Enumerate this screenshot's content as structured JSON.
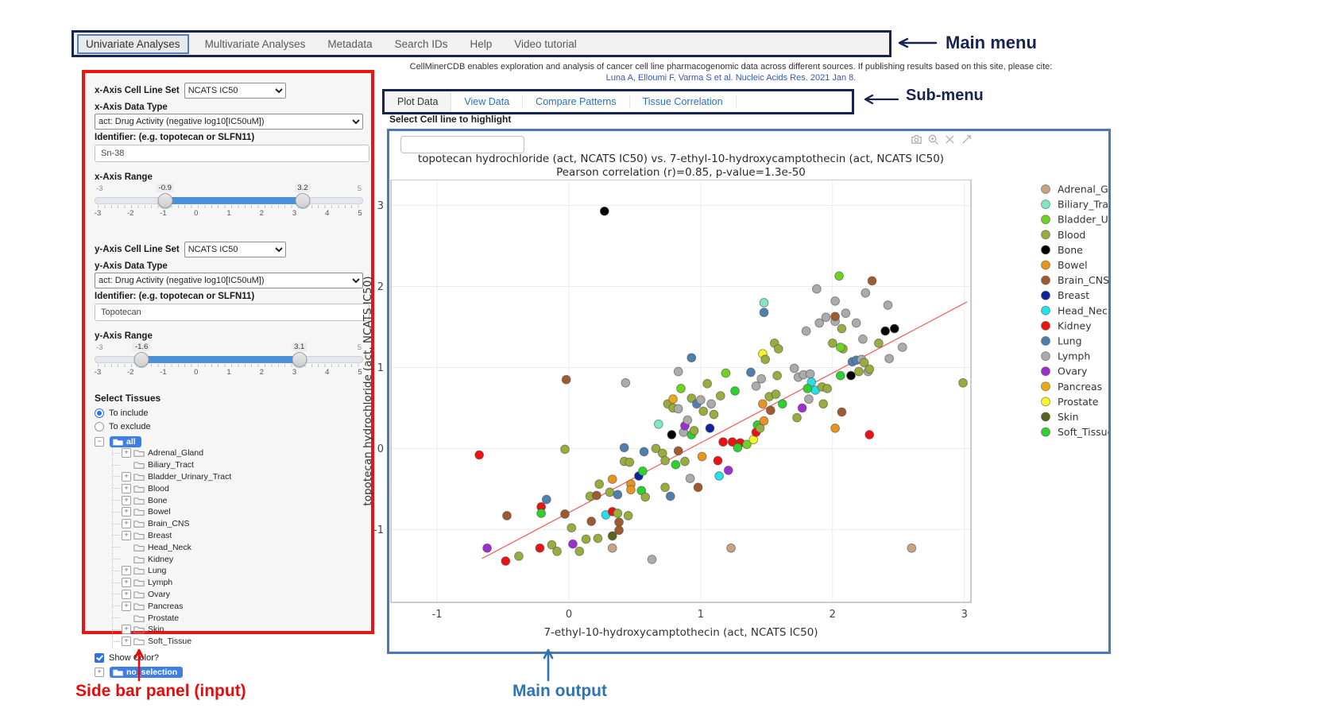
{
  "annotations": {
    "main_menu": "Main menu",
    "sub_menu": "Sub-menu",
    "sidebar": "Side bar panel (input)",
    "main_output": "Main output"
  },
  "main_menu": {
    "items": [
      {
        "label": "Univariate Analyses",
        "active": true
      },
      {
        "label": "Multivariate Analyses",
        "active": false
      },
      {
        "label": "Metadata",
        "active": false
      },
      {
        "label": "Search IDs",
        "active": false
      },
      {
        "label": "Help",
        "active": false
      },
      {
        "label": "Video tutorial",
        "active": false
      }
    ]
  },
  "citation": {
    "line1": "CellMinerCDB enables exploration and analysis of cancer cell line pharmacogenomic data across different sources. If publishing results based on this site, please cite:",
    "link": "Luna A, Elloumi F, Varma S et al. Nucleic Acids Res. 2021 Jan 8."
  },
  "sub_menu": {
    "active": "Plot Data",
    "items": [
      "Plot Data",
      "View Data",
      "Compare Patterns",
      "Tissue Correlation"
    ]
  },
  "highlight": {
    "label": "Select Cell line to highlight",
    "input_value": ""
  },
  "sidebar": {
    "x_axis": {
      "cell_line_set_label": "x-Axis Cell Line Set",
      "cell_line_set_value": "NCATS IC50",
      "data_type_label": "x-Axis Data Type",
      "data_type_value": "act: Drug Activity (negative log10[IC50uM])",
      "identifier_label": "Identifier: (e.g. topotecan or SLFN11)",
      "identifier_value": "Sn-38",
      "range_label": "x-Axis Range",
      "range_min": "-3",
      "range_max": "5",
      "range_from": "-0.9",
      "range_to": "3.2",
      "tick_labels": [
        "-3",
        "-2",
        "-1",
        "0",
        "1",
        "2",
        "3",
        "4",
        "5"
      ]
    },
    "y_axis": {
      "cell_line_set_label": "y-Axis Cell Line Set",
      "cell_line_set_value": "NCATS IC50",
      "data_type_label": "y-Axis Data Type",
      "data_type_value": "act: Drug Activity (negative log10[IC50uM])",
      "identifier_label": "Identifier: (e.g. topotecan or SLFN11)",
      "identifier_value": "Topotecan",
      "range_label": "y-Axis Range",
      "range_min": "-3",
      "range_max": "5",
      "range_from": "-1.6",
      "range_to": "3.1",
      "tick_labels": [
        "-3",
        "-2",
        "-1",
        "0",
        "1",
        "2",
        "3",
        "4",
        "5"
      ]
    },
    "tissues": {
      "label": "Select Tissues",
      "radio_include": "To include",
      "radio_exclude": "To exclude",
      "include_selected": true,
      "root_label": "all",
      "items": [
        {
          "label": "Adrenal_Gland",
          "expandable": true
        },
        {
          "label": "Biliary_Tract",
          "expandable": false
        },
        {
          "label": "Bladder_Urinary_Tract",
          "expandable": true
        },
        {
          "label": "Blood",
          "expandable": true
        },
        {
          "label": "Bone",
          "expandable": true
        },
        {
          "label": "Bowel",
          "expandable": true
        },
        {
          "label": "Brain_CNS",
          "expandable": true
        },
        {
          "label": "Breast",
          "expandable": true
        },
        {
          "label": "Head_Neck",
          "expandable": false
        },
        {
          "label": "Kidney",
          "expandable": false
        },
        {
          "label": "Lung",
          "expandable": true
        },
        {
          "label": "Lymph",
          "expandable": true
        },
        {
          "label": "Ovary",
          "expandable": true
        },
        {
          "label": "Pancreas",
          "expandable": true
        },
        {
          "label": "Prostate",
          "expandable": false
        },
        {
          "label": "Skin",
          "expandable": true
        },
        {
          "label": "Soft_Tissue",
          "expandable": true
        }
      ],
      "show_color_label": "Show Color?",
      "show_color_checked": true,
      "selection_root_label": "no_selection"
    }
  },
  "modebar": {
    "icons": [
      "camera",
      "zoom-in",
      "pan-cross",
      "reset-axes"
    ]
  },
  "chart_data": {
    "type": "scatter",
    "title": "topotecan hydrochloride (act, NCATS IC50) vs. 7-ethyl-10-hydroxycamptothecin (act, NCATS IC50)",
    "subtitle": "Pearson correlation (r)=0.85, p-value=1.3e-50",
    "xlabel": "7-ethyl-10-hydroxycamptothecin (act, NCATS IC50)",
    "ylabel": "topotecan hydrochloride (act, NCATS IC50)",
    "xlim": [
      -1.35,
      3.05
    ],
    "ylim": [
      -1.9,
      3.32
    ],
    "xticks": [
      -1,
      0,
      1,
      2,
      3
    ],
    "yticks": [
      -1,
      0,
      1,
      2,
      3
    ],
    "grid": true,
    "legend_position": "right",
    "regression_line": {
      "x": [
        -0.66,
        3.02
      ],
      "y": [
        -1.36,
        1.81
      ],
      "color": "#f4645f"
    },
    "tissues": [
      {
        "name": "Adrenal_Gland",
        "color": "#c7a384"
      },
      {
        "name": "Biliary_Tract",
        "color": "#7de8c3"
      },
      {
        "name": "Bladder_Urinary_Tract",
        "color": "#6fd41f"
      },
      {
        "name": "Blood",
        "color": "#97ad3d"
      },
      {
        "name": "Bone",
        "color": "#000000"
      },
      {
        "name": "Bowel",
        "color": "#e8941f"
      },
      {
        "name": "Brain_CNS",
        "color": "#9e5b30"
      },
      {
        "name": "Breast",
        "color": "#10239e"
      },
      {
        "name": "Head_Neck",
        "color": "#25e0e8"
      },
      {
        "name": "Kidney",
        "color": "#ee1111"
      },
      {
        "name": "Lung",
        "color": "#4f7fae"
      },
      {
        "name": "Lymph",
        "color": "#ababab"
      },
      {
        "name": "Ovary",
        "color": "#9d2fd1"
      },
      {
        "name": "Pancreas",
        "color": "#eaaa15"
      },
      {
        "name": "Prostate",
        "color": "#f5f52a"
      },
      {
        "name": "Skin",
        "color": "#55641f"
      },
      {
        "name": "Soft_Tissue",
        "color": "#2fd12f"
      }
    ],
    "points": [
      [
        -0.68,
        -0.08,
        "Kidney"
      ],
      [
        -0.62,
        -1.23,
        "Ovary"
      ],
      [
        -0.48,
        -1.39,
        "Kidney"
      ],
      [
        -0.38,
        -1.33,
        "Blood"
      ],
      [
        -0.47,
        -0.83,
        "Brain_CNS"
      ],
      [
        -0.22,
        -1.23,
        "Kidney"
      ],
      [
        -0.21,
        -0.72,
        "Kidney"
      ],
      [
        -0.21,
        -0.8,
        "Soft_Tissue"
      ],
      [
        -0.17,
        -0.63,
        "Lung"
      ],
      [
        -0.13,
        -1.19,
        "Blood"
      ],
      [
        -0.09,
        -1.27,
        "Blood"
      ],
      [
        -0.03,
        -0.81,
        "Brain_CNS"
      ],
      [
        0.02,
        -0.98,
        "Blood"
      ],
      [
        0.03,
        -1.18,
        "Ovary"
      ],
      [
        0.08,
        -1.27,
        "Blood"
      ],
      [
        0.13,
        -1.12,
        "Blood"
      ],
      [
        0.17,
        -0.9,
        "Brain_CNS"
      ],
      [
        0.22,
        -1.11,
        "Blood"
      ],
      [
        0.28,
        -0.82,
        "Head_Neck"
      ],
      [
        0.33,
        -1.23,
        "Adrenal_Gland"
      ],
      [
        0.33,
        -1.08,
        "Skin"
      ],
      [
        0.33,
        -0.78,
        "Kidney"
      ],
      [
        0.37,
        -0.8,
        "Blood"
      ],
      [
        0.38,
        -0.91,
        "Brain_CNS"
      ],
      [
        0.38,
        -1.01,
        "Brain_CNS"
      ],
      [
        0.45,
        -0.83,
        "Blood"
      ],
      [
        0.63,
        -1.37,
        "Lymph"
      ],
      [
        1.23,
        -1.23,
        "Adrenal_Gland"
      ],
      [
        2.6,
        -1.23,
        "Adrenal_Gland"
      ],
      [
        0.16,
        -0.59,
        "Blood"
      ],
      [
        0.21,
        -0.58,
        "Brain_CNS"
      ],
      [
        0.23,
        -0.44,
        "Blood"
      ],
      [
        0.31,
        -0.54,
        "Blood"
      ],
      [
        0.33,
        -0.38,
        "Bowel"
      ],
      [
        0.37,
        -0.57,
        "Lung"
      ],
      [
        0.42,
        -0.16,
        "Blood"
      ],
      [
        0.46,
        -0.17,
        "Blood"
      ],
      [
        0.47,
        -0.44,
        "Bowel"
      ],
      [
        0.47,
        -0.51,
        "Bowel"
      ],
      [
        0.53,
        -0.34,
        "Breast"
      ],
      [
        0.55,
        -0.52,
        "Soft_Tissue"
      ],
      [
        0.56,
        -0.28,
        "Soft_Tissue"
      ],
      [
        0.58,
        -0.6,
        "Blood"
      ],
      [
        0.66,
        0,
        "Blood"
      ],
      [
        0.71,
        -0.06,
        "Blood"
      ],
      [
        0.73,
        -0.48,
        "Blood"
      ],
      [
        0.73,
        -0.15,
        "Blood"
      ],
      [
        0.77,
        -0.59,
        "Lung"
      ],
      [
        0.81,
        -0.2,
        "Soft_Tissue"
      ],
      [
        0.83,
        -0.03,
        "Brain_CNS"
      ],
      [
        0.88,
        -0.16,
        "Blood"
      ],
      [
        0.92,
        -0.37,
        "Lymph"
      ],
      [
        0.98,
        -0.48,
        "Brain_CNS"
      ],
      [
        1.01,
        -0.1,
        "Bowel"
      ],
      [
        1.13,
        -0.15,
        "Kidney"
      ],
      [
        1.14,
        -0.34,
        "Head_Neck"
      ],
      [
        1.21,
        -0.27,
        "Ovary"
      ],
      [
        -0.03,
        -0.01,
        "Blood"
      ],
      [
        0.42,
        0.01,
        "Lung"
      ],
      [
        0.57,
        -0.04,
        "Lung"
      ],
      [
        0.68,
        0.3,
        "Biliary_Tract"
      ],
      [
        0.75,
        0.55,
        "Blood"
      ],
      [
        0.78,
        0.17,
        "Bone"
      ],
      [
        0.79,
        0.61,
        "Pancreas"
      ],
      [
        0.79,
        0.5,
        "Blood"
      ],
      [
        0.83,
        0.49,
        "Lymph"
      ],
      [
        0.87,
        0.2,
        "Lymph"
      ],
      [
        0.88,
        0.28,
        "Ovary"
      ],
      [
        0.9,
        0.35,
        "Lymph"
      ],
      [
        0.93,
        0.17,
        "Soft_Tissue"
      ],
      [
        0.95,
        0.22,
        "Blood"
      ],
      [
        1.07,
        0.25,
        "Breast"
      ],
      [
        0.93,
        0.62,
        "Blood"
      ],
      [
        0.97,
        0.55,
        "Lung"
      ],
      [
        1,
        0.6,
        "Lymph"
      ],
      [
        1.02,
        0.46,
        "Blood"
      ],
      [
        1.08,
        0.55,
        "Lymph"
      ],
      [
        1.1,
        0.42,
        "Blood"
      ],
      [
        1.17,
        0.08,
        "Kidney"
      ],
      [
        1.24,
        0.08,
        "Kidney"
      ],
      [
        1.3,
        0.07,
        "Kidney"
      ],
      [
        1.28,
        0.01,
        "Soft_Tissue"
      ],
      [
        1.35,
        0.05,
        "Bladder_Urinary_Tract"
      ],
      [
        1.4,
        0.11,
        "Prostate"
      ],
      [
        1.42,
        0.2,
        "Kidney"
      ],
      [
        1.43,
        0.29,
        "Soft_Tissue"
      ],
      [
        1.45,
        0.25,
        "Blood"
      ],
      [
        1.47,
        0.55,
        "Bowel"
      ],
      [
        1.48,
        0.34,
        "Bowel"
      ],
      [
        1.53,
        0.47,
        "Brain_CNS"
      ],
      [
        1.52,
        0.64,
        "Blood"
      ],
      [
        1.57,
        0.67,
        "Blood"
      ],
      [
        1.73,
        0.38,
        "Blood"
      ],
      [
        1.77,
        0.5,
        "Ovary"
      ],
      [
        1.82,
        0.61,
        "Lymph"
      ],
      [
        1.93,
        0.55,
        "Blood"
      ],
      [
        2.02,
        0.25,
        "Bowel"
      ],
      [
        2.28,
        0.17,
        "Kidney"
      ],
      [
        2.07,
        0.45,
        "Brain_CNS"
      ],
      [
        0.43,
        0.81,
        "Lymph"
      ],
      [
        0.93,
        1.12,
        "Lung"
      ],
      [
        0.83,
        0.95,
        "Lymph"
      ],
      [
        -0.02,
        0.85,
        "Brain_CNS"
      ],
      [
        1.38,
        0.94,
        "Lung"
      ],
      [
        1.42,
        0.77,
        "Lymph"
      ],
      [
        1.46,
        0.86,
        "Lymph"
      ],
      [
        1.47,
        1.17,
        "Prostate"
      ],
      [
        1.49,
        1.1,
        "Blood"
      ],
      [
        1.56,
        1.3,
        "Blood"
      ],
      [
        1.59,
        1.23,
        "Blood"
      ],
      [
        1.48,
        1.8,
        "Biliary_Tract"
      ],
      [
        1.48,
        1.68,
        "Lung"
      ],
      [
        1.58,
        0.9,
        "Blood"
      ],
      [
        1.71,
        0.99,
        "Lymph"
      ],
      [
        1.74,
        0.88,
        "Lymph"
      ],
      [
        1.78,
        0.91,
        "Lymph"
      ],
      [
        1.83,
        0.92,
        "Lymph"
      ],
      [
        1.84,
        0.82,
        "Head_Neck"
      ],
      [
        1.87,
        0.72,
        "Head_Neck"
      ],
      [
        1.81,
        0.74,
        "Soft_Tissue"
      ],
      [
        1.92,
        0.76,
        "Blood"
      ],
      [
        1.96,
        0.74,
        "Blood"
      ],
      [
        2.06,
        0.9,
        "Soft_Tissue"
      ],
      [
        2.14,
        0.9,
        "Bone"
      ],
      [
        2.2,
        0.95,
        "Blood"
      ],
      [
        2.08,
        1.23,
        "Blood"
      ],
      [
        2.15,
        1.07,
        "Lung"
      ],
      [
        2.18,
        1.09,
        "Lung"
      ],
      [
        2.22,
        1.1,
        "Lymph"
      ],
      [
        2.24,
        1.06,
        "Blood"
      ],
      [
        2.27,
        0.95,
        "Lymph"
      ],
      [
        2.28,
        0.98,
        "Blood"
      ],
      [
        2.43,
        1.11,
        "Lymph"
      ],
      [
        2.53,
        1.25,
        "Lymph"
      ],
      [
        2.99,
        0.81,
        "Blood"
      ],
      [
        1.88,
        1.97,
        "Lymph"
      ],
      [
        2.05,
        2.13,
        "Bladder_Urinary_Tract"
      ],
      [
        2.3,
        2.07,
        "Brain_CNS"
      ],
      [
        2.25,
        1.92,
        "Lymph"
      ],
      [
        2.02,
        1.82,
        "Lymph"
      ],
      [
        2.42,
        1.77,
        "Lymph"
      ],
      [
        1.95,
        1.62,
        "Lymph"
      ],
      [
        2.02,
        1.57,
        "Lymph"
      ],
      [
        2.1,
        1.67,
        "Lymph"
      ],
      [
        1.9,
        1.55,
        "Lymph"
      ],
      [
        2.18,
        1.55,
        "Lymph"
      ],
      [
        2.02,
        1.63,
        "Brain_CNS"
      ],
      [
        2.07,
        1.48,
        "Blood"
      ],
      [
        2,
        1.3,
        "Blood"
      ],
      [
        2.06,
        1.25,
        "Bladder_Urinary_Tract"
      ],
      [
        2.23,
        1.35,
        "Lymph"
      ],
      [
        2.35,
        1.3,
        "Blood"
      ],
      [
        2.4,
        1.45,
        "Bone"
      ],
      [
        2.47,
        1.48,
        "Bone"
      ],
      [
        1.8,
        1.45,
        "Lymph"
      ],
      [
        0.27,
        2.93,
        "Bone"
      ],
      [
        1.19,
        0.93,
        "Bladder_Urinary_Tract"
      ],
      [
        1.26,
        0.71,
        "Soft_Tissue"
      ],
      [
        1.62,
        0.55,
        "Soft_Tissue"
      ],
      [
        0.85,
        0.74,
        "Bladder_Urinary_Tract"
      ],
      [
        1.05,
        0.8,
        "Blood"
      ],
      [
        1.15,
        0.65,
        "Blood"
      ]
    ]
  }
}
